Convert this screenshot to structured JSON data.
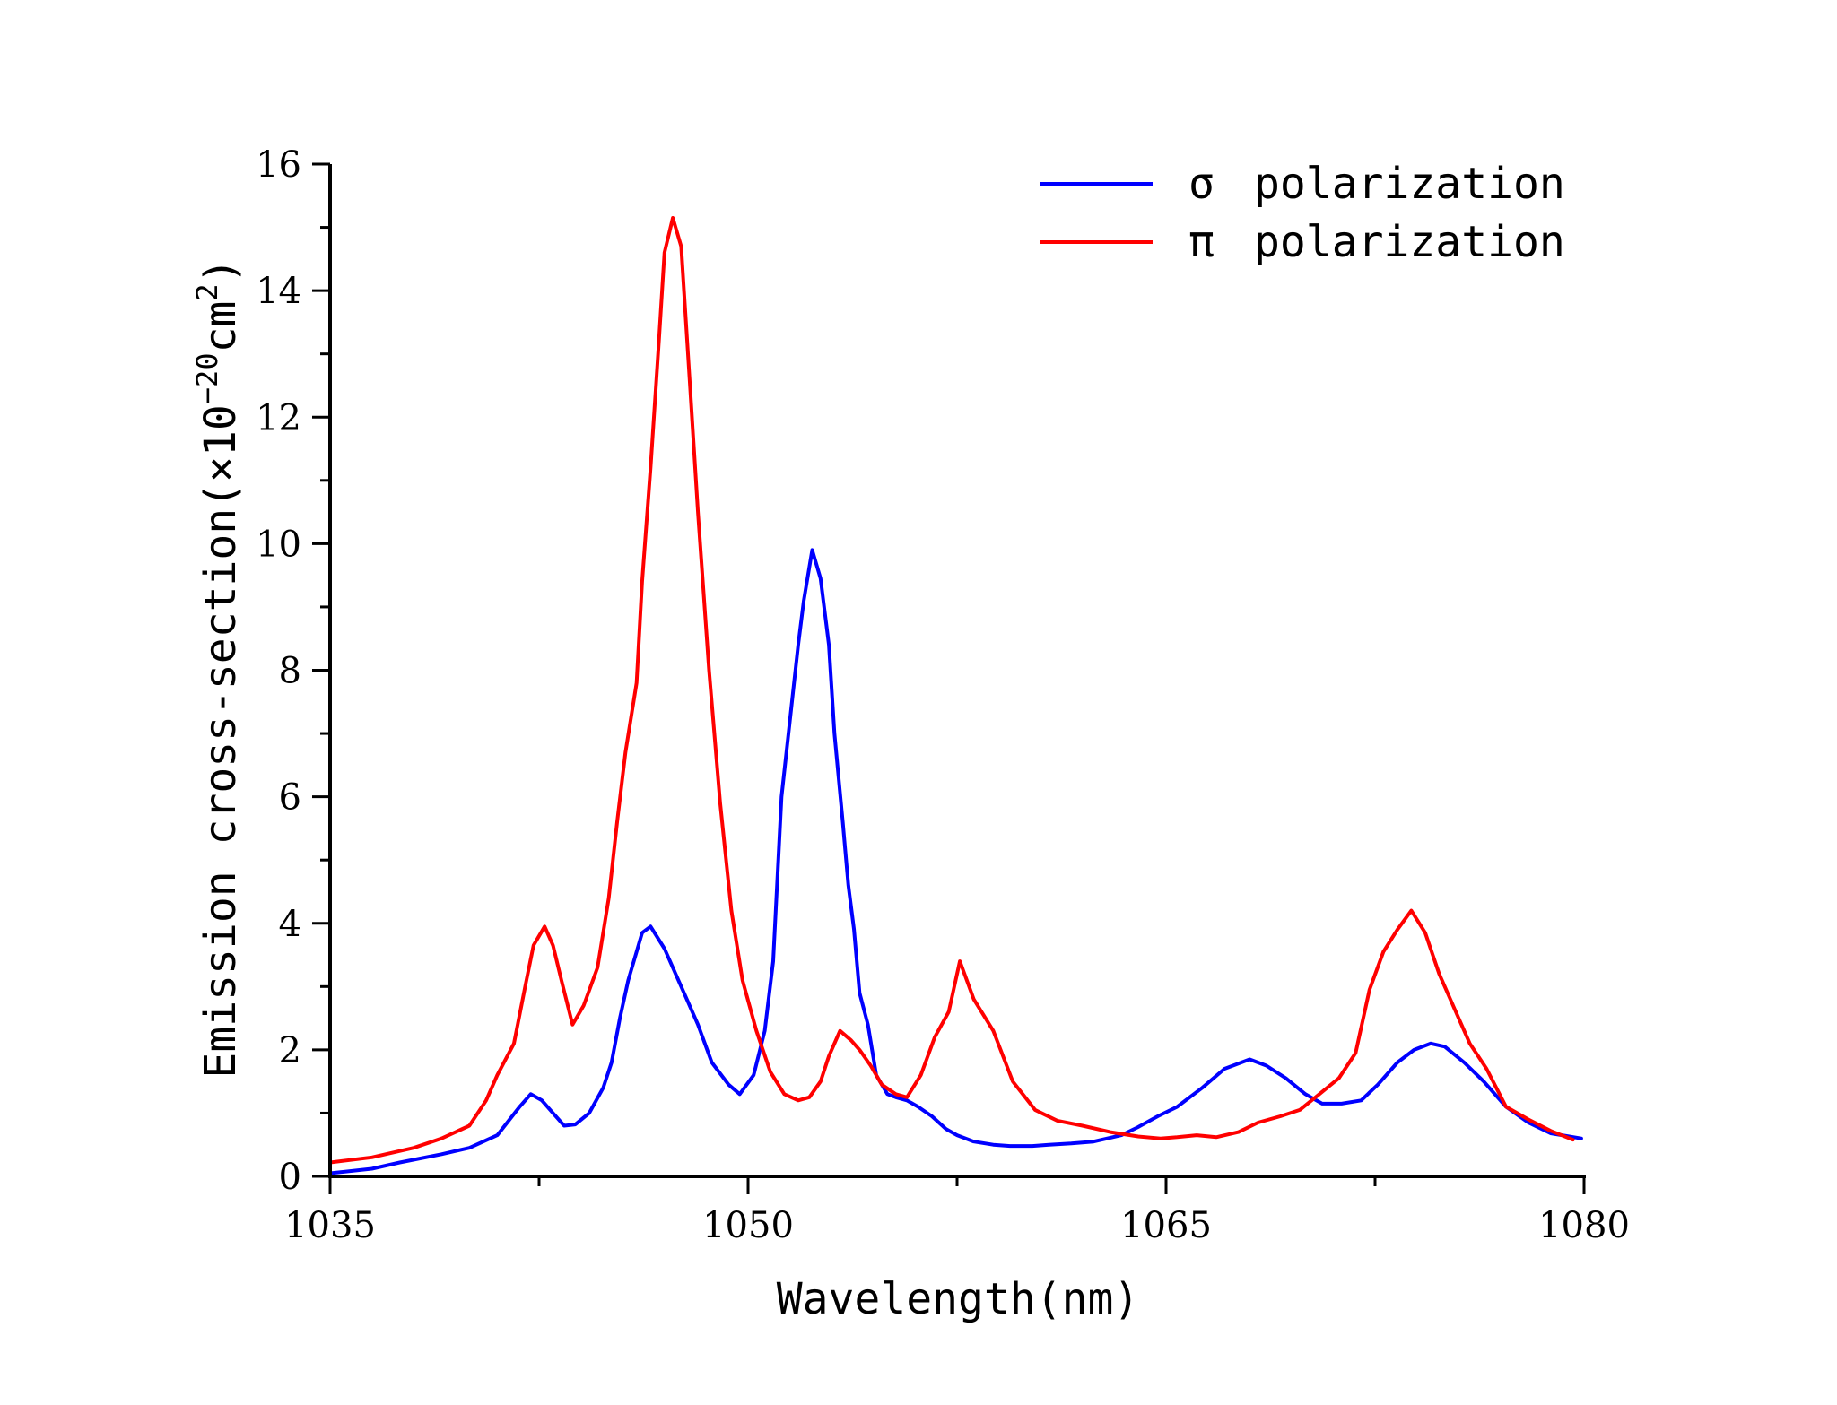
{
  "chart_data": {
    "type": "line",
    "title": "",
    "xlabel": "Wavelength(nm)",
    "ylabel": {
      "prefix": "Emission cross-section(",
      "times": "×",
      "base": "10",
      "exp": "−20",
      "unit": "cm",
      "unit_exp": "2",
      "suffix": ")"
    },
    "xlim": [
      1035,
      1080
    ],
    "ylim": [
      0,
      16
    ],
    "xticks": [
      1035,
      1050,
      1065,
      1080
    ],
    "yticks": [
      0,
      2,
      4,
      6,
      8,
      10,
      12,
      14,
      16
    ],
    "legend_position": "top-right",
    "series": [
      {
        "name": "σ polarization",
        "symbol": "σ",
        "label": "polarization",
        "color": "#0000ff",
        "x": [
          1035,
          1036.5,
          1037.5,
          1039,
          1040,
          1041,
          1041.8,
          1042.2,
          1042.6,
          1043,
          1043.4,
          1043.8,
          1044.3,
          1044.8,
          1045.1,
          1045.4,
          1045.7,
          1046,
          1046.2,
          1046.5,
          1047,
          1047.4,
          1047.8,
          1048.2,
          1048.7,
          1049.3,
          1049.7,
          1050.2,
          1050.6,
          1050.9,
          1051.2,
          1051.5,
          1051.8,
          1052,
          1052.3,
          1052.6,
          1052.9,
          1053.1,
          1053.4,
          1053.6,
          1053.8,
          1054,
          1054.3,
          1054.6,
          1055,
          1055.3,
          1055.7,
          1056.1,
          1056.6,
          1057.1,
          1057.5,
          1058.1,
          1058.8,
          1059.4,
          1060.2,
          1060.8,
          1061.6,
          1062.4,
          1063.4,
          1064,
          1064.7,
          1065.4,
          1066.3,
          1067.1,
          1068,
          1068.6,
          1069.3,
          1070,
          1070.6,
          1071.3,
          1072,
          1072.6,
          1073.3,
          1073.9,
          1074.5,
          1075,
          1075.7,
          1076.4,
          1077.2,
          1078,
          1078.8,
          1079.9
        ],
        "y": [
          0.05,
          0.12,
          0.22,
          0.35,
          0.45,
          0.65,
          1.1,
          1.3,
          1.2,
          1.0,
          0.8,
          0.82,
          1.0,
          1.4,
          1.8,
          2.5,
          3.1,
          3.55,
          3.85,
          3.95,
          3.6,
          3.2,
          2.8,
          2.4,
          1.8,
          1.45,
          1.3,
          1.6,
          2.3,
          3.4,
          6.0,
          7.2,
          8.4,
          9.1,
          9.9,
          9.45,
          8.4,
          7.0,
          5.6,
          4.6,
          3.9,
          2.9,
          2.4,
          1.6,
          1.3,
          1.25,
          1.2,
          1.1,
          0.95,
          0.75,
          0.65,
          0.55,
          0.5,
          0.48,
          0.48,
          0.5,
          0.52,
          0.55,
          0.65,
          0.78,
          0.95,
          1.1,
          1.4,
          1.7,
          1.85,
          1.75,
          1.55,
          1.3,
          1.15,
          1.15,
          1.2,
          1.45,
          1.8,
          2.0,
          2.1,
          2.05,
          1.8,
          1.5,
          1.1,
          0.85,
          0.68,
          0.6
        ]
      },
      {
        "name": "π polarization",
        "symbol": "π",
        "label": "polarization",
        "color": "#ff0000",
        "x": [
          1035,
          1036.5,
          1038,
          1039,
          1040,
          1040.6,
          1041,
          1041.6,
          1042,
          1042.3,
          1042.7,
          1043,
          1043.3,
          1043.7,
          1044.1,
          1044.6,
          1045,
          1045.3,
          1045.6,
          1046,
          1046.2,
          1046.5,
          1046.8,
          1047,
          1047.3,
          1047.6,
          1047.9,
          1048.2,
          1048.6,
          1049,
          1049.4,
          1049.8,
          1050.3,
          1050.8,
          1051.3,
          1051.8,
          1052.2,
          1052.6,
          1052.9,
          1053.3,
          1053.7,
          1054,
          1054.4,
          1054.8,
          1055.3,
          1055.7,
          1056.2,
          1056.7,
          1057.2,
          1057.6,
          1058.1,
          1058.8,
          1059.5,
          1060.3,
          1061.1,
          1062,
          1063,
          1064,
          1064.8,
          1065.4,
          1066.1,
          1066.8,
          1067.6,
          1068.3,
          1069.1,
          1069.8,
          1070.5,
          1071.2,
          1071.8,
          1072.3,
          1072.8,
          1073.3,
          1073.8,
          1074.3,
          1074.8,
          1075.3,
          1075.9,
          1076.5,
          1077.2,
          1078,
          1078.8,
          1079.6
        ],
        "y": [
          0.22,
          0.3,
          0.45,
          0.6,
          0.8,
          1.2,
          1.6,
          2.1,
          3.0,
          3.65,
          3.95,
          3.65,
          3.1,
          2.4,
          2.7,
          3.3,
          4.4,
          5.6,
          6.7,
          7.8,
          9.4,
          11.2,
          13.2,
          14.6,
          15.15,
          14.7,
          12.6,
          10.5,
          8.0,
          5.9,
          4.2,
          3.1,
          2.3,
          1.65,
          1.3,
          1.2,
          1.25,
          1.5,
          1.9,
          2.3,
          2.15,
          2.0,
          1.75,
          1.45,
          1.3,
          1.25,
          1.6,
          2.2,
          2.6,
          3.4,
          2.8,
          2.3,
          1.5,
          1.05,
          0.88,
          0.8,
          0.7,
          0.63,
          0.6,
          0.62,
          0.65,
          0.62,
          0.7,
          0.85,
          0.95,
          1.05,
          1.3,
          1.55,
          1.95,
          2.95,
          3.55,
          3.9,
          4.2,
          3.85,
          3.2,
          2.7,
          2.1,
          1.7,
          1.1,
          0.9,
          0.72,
          0.58
        ]
      }
    ]
  }
}
